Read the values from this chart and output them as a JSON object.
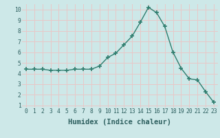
{
  "x": [
    0,
    1,
    2,
    3,
    4,
    5,
    6,
    7,
    8,
    9,
    10,
    11,
    12,
    13,
    14,
    15,
    16,
    17,
    18,
    19,
    20,
    21,
    22,
    23
  ],
  "y": [
    4.4,
    4.4,
    4.4,
    4.3,
    4.3,
    4.3,
    4.4,
    4.4,
    4.4,
    4.7,
    5.5,
    5.9,
    6.7,
    7.5,
    8.8,
    10.2,
    9.7,
    8.4,
    6.0,
    4.5,
    3.5,
    3.4,
    2.3,
    1.3
  ],
  "line_color": "#2e7d6e",
  "marker": "+",
  "marker_size": 4,
  "marker_lw": 1.2,
  "xlabel": "Humidex (Indice chaleur)",
  "xlim": [
    -0.5,
    23.5
  ],
  "ylim": [
    0.8,
    10.5
  ],
  "yticks": [
    1,
    2,
    3,
    4,
    5,
    6,
    7,
    8,
    9,
    10
  ],
  "xticks": [
    0,
    1,
    2,
    3,
    4,
    5,
    6,
    7,
    8,
    9,
    10,
    11,
    12,
    13,
    14,
    15,
    16,
    17,
    18,
    19,
    20,
    21,
    22,
    23
  ],
  "bg_color": "#cde8e8",
  "grid_color": "#e8c8c8",
  "font_color": "#2e6060",
  "tick_label_fontsize": 5.8,
  "xlabel_fontsize": 7.5,
  "linewidth": 1.0
}
